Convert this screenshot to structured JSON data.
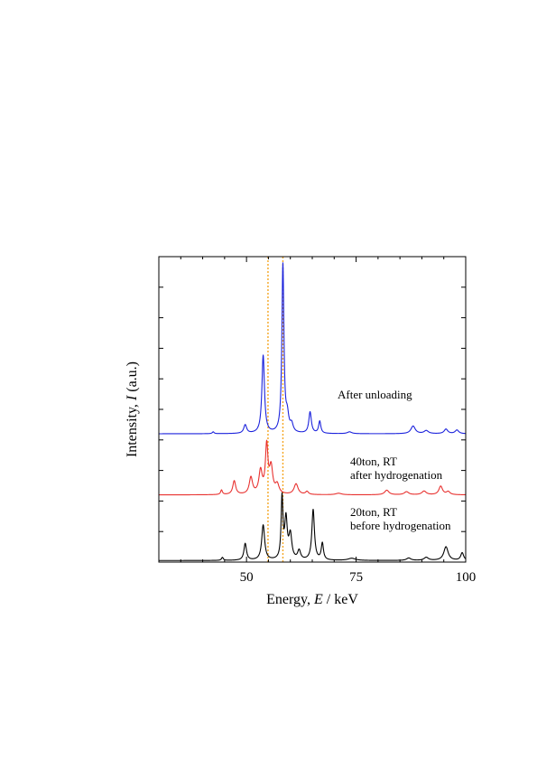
{
  "chart_data": {
    "type": "line",
    "title": "",
    "xlabel": "Energy, E / keV",
    "xlabel_parts": [
      "Energy, ",
      "E",
      " / keV"
    ],
    "ylabel": "Intensity, I (a.u.)",
    "ylabel_parts": [
      "Intensity, ",
      "I",
      " (a.u.)"
    ],
    "xlim": [
      30,
      100
    ],
    "ylim": [
      0,
      10
    ],
    "xticks": [
      50,
      75,
      100
    ],
    "xtick_labels": [
      "50",
      "75",
      "100"
    ],
    "grid": false,
    "legend": "none",
    "reference_lines": [
      {
        "x": 54.9,
        "color": "#f5a623",
        "style": "dotted"
      },
      {
        "x": 58.3,
        "color": "#f5a623",
        "style": "dotted"
      }
    ],
    "series": [
      {
        "color": "#000000",
        "offset": 0.05,
        "label_lines": [
          "20ton, RT",
          "before hydrogenation"
        ],
        "peaks": [
          {
            "x": 44.5,
            "h": 0.1,
            "w": 0.25
          },
          {
            "x": 49.7,
            "h": 0.55,
            "w": 0.35
          },
          {
            "x": 53.8,
            "h": 1.15,
            "w": 0.4
          },
          {
            "x": 58.1,
            "h": 2.0,
            "w": 0.25
          },
          {
            "x": 59.0,
            "h": 1.3,
            "w": 0.35
          },
          {
            "x": 60.0,
            "h": 0.8,
            "w": 0.4
          },
          {
            "x": 62.0,
            "h": 0.3,
            "w": 0.4
          },
          {
            "x": 65.2,
            "h": 1.65,
            "w": 0.35
          },
          {
            "x": 67.3,
            "h": 0.55,
            "w": 0.3
          },
          {
            "x": 74.0,
            "h": 0.07,
            "w": 1.0
          },
          {
            "x": 87.0,
            "h": 0.08,
            "w": 0.6
          },
          {
            "x": 91.0,
            "h": 0.1,
            "w": 0.6
          },
          {
            "x": 95.5,
            "h": 0.45,
            "w": 0.6
          },
          {
            "x": 99.2,
            "h": 0.25,
            "w": 0.4
          }
        ]
      },
      {
        "color": "#e8312f",
        "offset": 2.2,
        "label_lines": [
          "40ton, RT",
          "after hydrogenation"
        ],
        "peaks": [
          {
            "x": 44.3,
            "h": 0.15,
            "w": 0.25
          },
          {
            "x": 47.2,
            "h": 0.45,
            "w": 0.4
          },
          {
            "x": 51.0,
            "h": 0.55,
            "w": 0.45
          },
          {
            "x": 53.2,
            "h": 0.75,
            "w": 0.45
          },
          {
            "x": 54.6,
            "h": 1.55,
            "w": 0.35
          },
          {
            "x": 55.6,
            "h": 0.85,
            "w": 0.45
          },
          {
            "x": 57.0,
            "h": 0.3,
            "w": 0.5
          },
          {
            "x": 61.3,
            "h": 0.35,
            "w": 0.55
          },
          {
            "x": 63.8,
            "h": 0.1,
            "w": 0.4
          },
          {
            "x": 71.0,
            "h": 0.05,
            "w": 0.8
          },
          {
            "x": 82.0,
            "h": 0.15,
            "w": 0.6
          },
          {
            "x": 86.5,
            "h": 0.1,
            "w": 0.6
          },
          {
            "x": 90.5,
            "h": 0.12,
            "w": 0.6
          },
          {
            "x": 94.3,
            "h": 0.28,
            "w": 0.5
          },
          {
            "x": 96.0,
            "h": 0.1,
            "w": 0.5
          }
        ]
      },
      {
        "color": "#1b22dc",
        "offset": 4.2,
        "label_lines": [
          "After unloading"
        ],
        "peaks": [
          {
            "x": 42.4,
            "h": 0.06,
            "w": 0.25
          },
          {
            "x": 49.7,
            "h": 0.28,
            "w": 0.4
          },
          {
            "x": 53.8,
            "h": 2.55,
            "w": 0.35
          },
          {
            "x": 58.3,
            "h": 5.5,
            "w": 0.28
          },
          {
            "x": 59.3,
            "h": 0.5,
            "w": 0.4
          },
          {
            "x": 60.3,
            "h": 0.25,
            "w": 0.4
          },
          {
            "x": 64.5,
            "h": 0.7,
            "w": 0.35
          },
          {
            "x": 66.7,
            "h": 0.4,
            "w": 0.3
          },
          {
            "x": 73.5,
            "h": 0.06,
            "w": 0.6
          },
          {
            "x": 88.0,
            "h": 0.25,
            "w": 0.6
          },
          {
            "x": 91.0,
            "h": 0.1,
            "w": 0.6
          },
          {
            "x": 95.5,
            "h": 0.15,
            "w": 0.5
          },
          {
            "x": 98.0,
            "h": 0.12,
            "w": 0.5
          }
        ]
      }
    ]
  }
}
